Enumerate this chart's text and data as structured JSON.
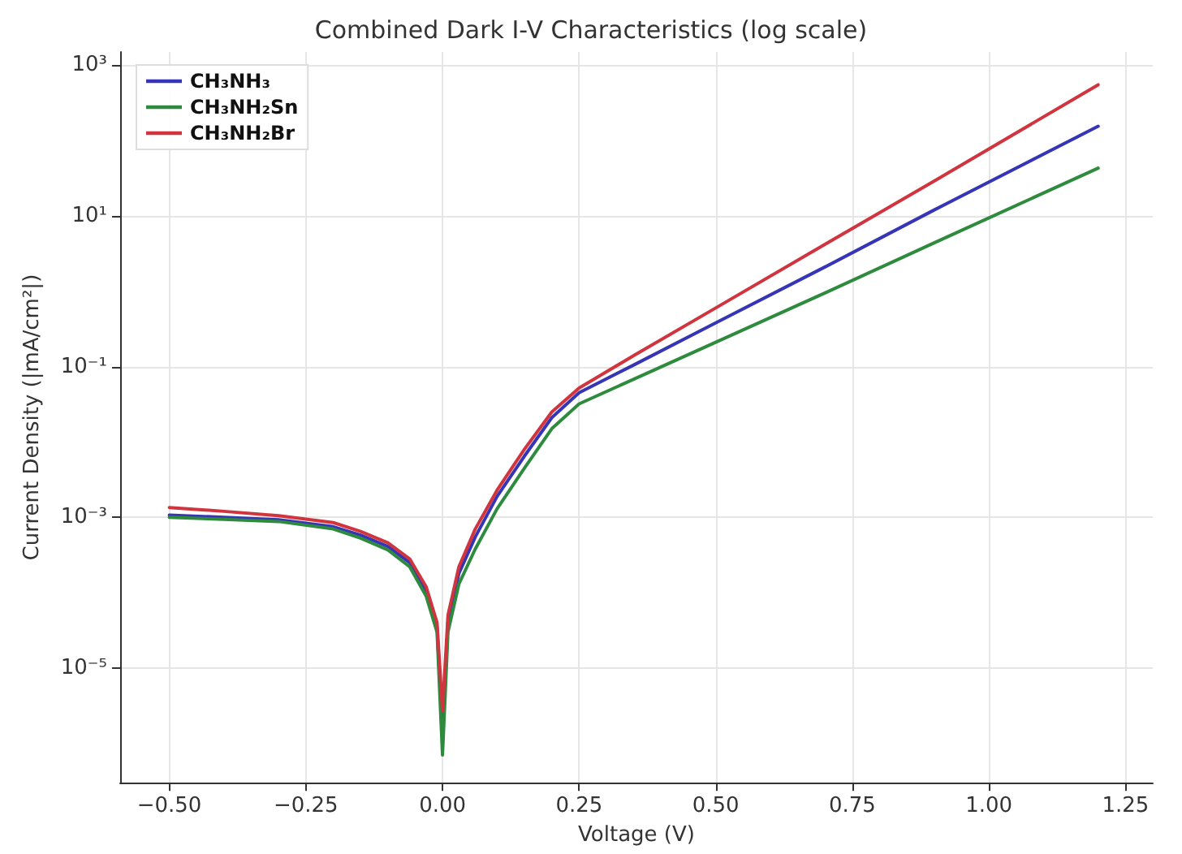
{
  "chart_data": {
    "type": "line",
    "title": "Combined Dark I-V Characteristics (log scale)",
    "xlabel": "Voltage (V)",
    "ylabel": "Current Density (|mA/cm²|)",
    "x": [
      -0.5,
      -0.4,
      -0.3,
      -0.2,
      -0.15,
      -0.1,
      -0.06,
      -0.03,
      -0.01,
      0,
      0.01,
      0.03,
      0.06,
      0.1,
      0.15,
      0.2,
      0.25,
      0.35,
      0.5,
      0.7,
      0.9,
      1.2
    ],
    "series": [
      {
        "name": "CH₃NH₃",
        "color": "#3535b5",
        "values": [
          0.00107,
          0.001,
          0.00093,
          0.00075,
          0.00058,
          0.00041,
          0.00025,
          0.000105,
          3.5e-05,
          1.4e-06,
          4e-05,
          0.00018,
          0.00055,
          0.0019,
          0.0065,
          0.021,
          0.045,
          0.105,
          0.38,
          2.1,
          12,
          155
        ]
      },
      {
        "name": "CH₃NH₂Sn",
        "color": "#2e8b3e",
        "values": [
          0.001,
          0.00094,
          0.00088,
          0.0007,
          0.00053,
          0.00037,
          0.00022,
          9e-05,
          3e-05,
          7e-07,
          3e-05,
          0.00013,
          0.00038,
          0.0013,
          0.0045,
          0.015,
          0.032,
          0.068,
          0.21,
          0.95,
          4.4,
          43
        ]
      },
      {
        "name": "CH₃NH₂Br",
        "color": "#d0343e",
        "values": [
          0.00135,
          0.0012,
          0.00105,
          0.00085,
          0.00065,
          0.00046,
          0.00028,
          0.00012,
          4e-05,
          2.7e-06,
          5e-05,
          0.00022,
          0.0007,
          0.0023,
          0.008,
          0.025,
          0.052,
          0.14,
          0.6,
          4.2,
          29,
          550
        ]
      }
    ],
    "xlim": [
      -0.59,
      1.3
    ],
    "ylim": [
      3e-07,
      1500
    ],
    "xticks": [
      {
        "value": -0.5,
        "label": "−0.50"
      },
      {
        "value": -0.25,
        "label": "−0.25"
      },
      {
        "value": 0,
        "label": "0.00"
      },
      {
        "value": 0.25,
        "label": "0.25"
      },
      {
        "value": 0.5,
        "label": "0.50"
      },
      {
        "value": 0.75,
        "label": "0.75"
      },
      {
        "value": 1,
        "label": "1.00"
      },
      {
        "value": 1.25,
        "label": "1.25"
      }
    ],
    "yticks": [
      {
        "value": 1e-05,
        "label": "10⁻⁵"
      },
      {
        "value": 0.001,
        "label": "10⁻³"
      },
      {
        "value": 0.1,
        "label": "10⁻¹"
      },
      {
        "value": 10,
        "label": "10¹"
      },
      {
        "value": 1000,
        "label": "10³"
      }
    ],
    "log": "y",
    "grid": true,
    "legend": "top left",
    "marker": "none",
    "line_style": "solid"
  }
}
